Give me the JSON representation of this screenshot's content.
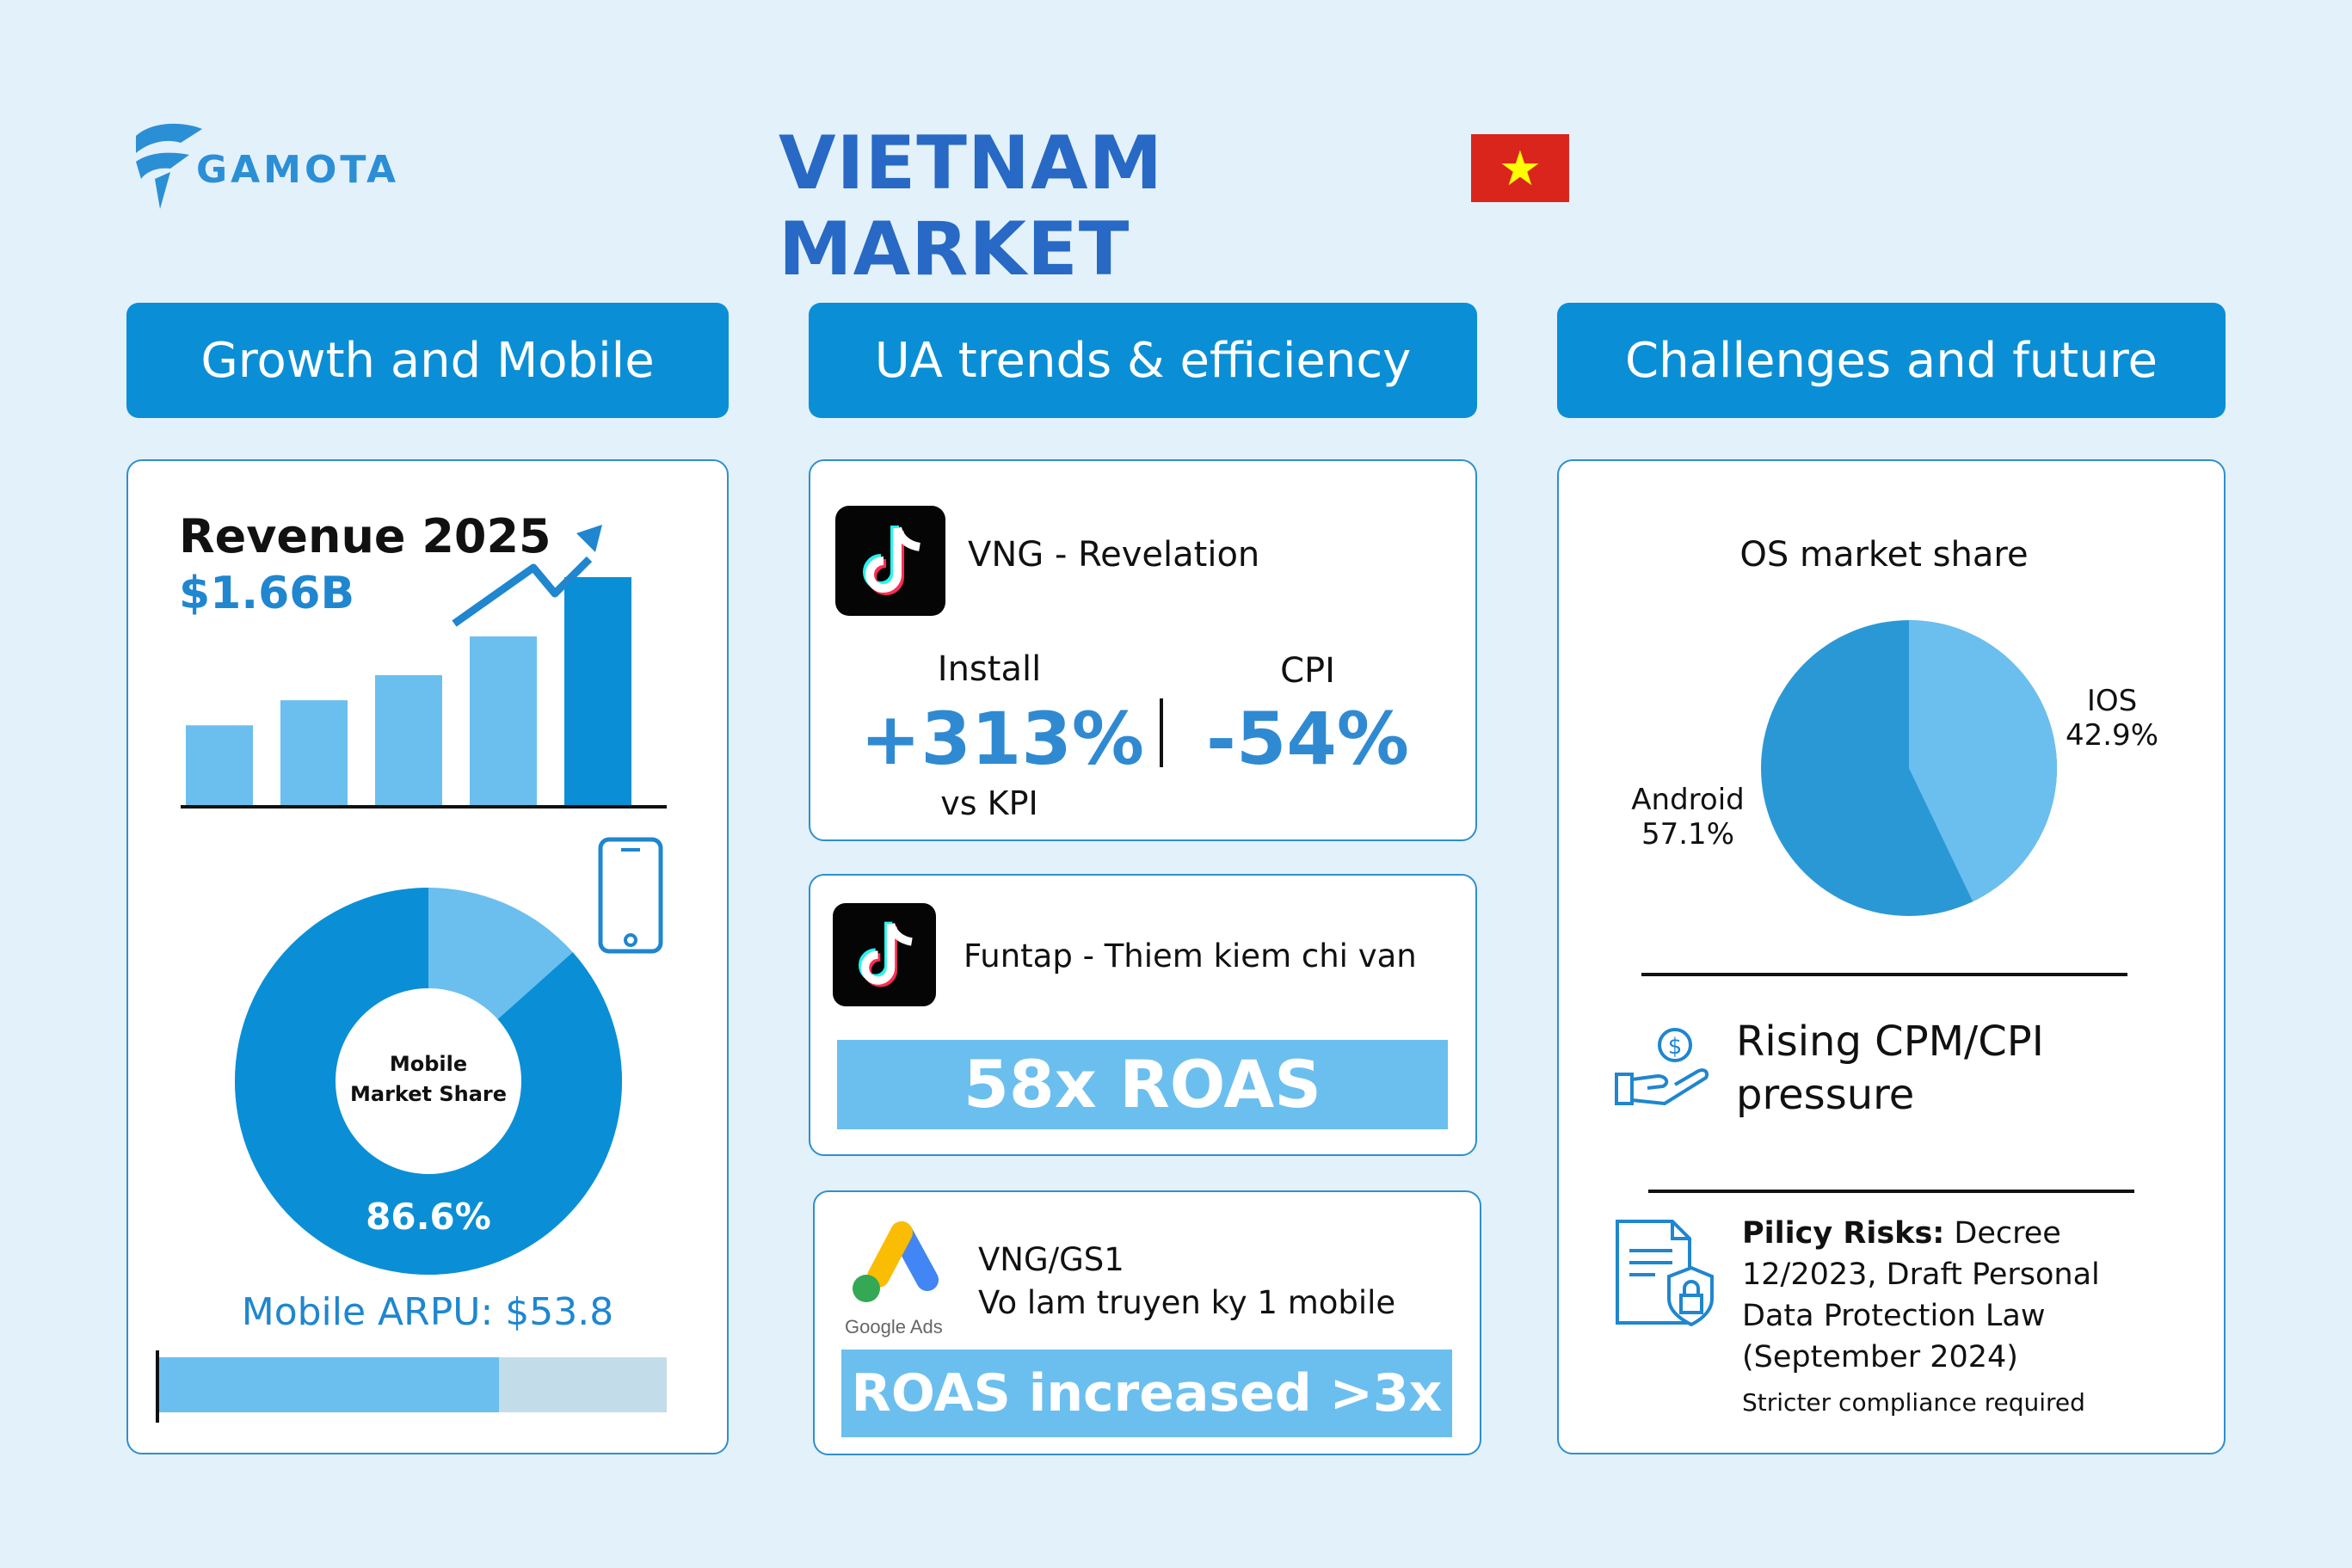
{
  "logo": {
    "prefix": "G",
    "text": "GAMOTA",
    "rest": "AMOTA"
  },
  "title": "VIETNAM MARKET",
  "flag": {
    "icon": "vietnam-flag",
    "star": "★"
  },
  "columns": {
    "growth": "Growth and Mobile",
    "ua": "UA trends & efficiency",
    "challenges": "Challenges and future"
  },
  "growth": {
    "revenue_title": "Revenue 2025",
    "revenue_value": "$1.66B",
    "bar_levels": [
      0.35,
      0.46,
      0.57,
      0.74,
      1.0
    ],
    "mobile_share_label_1": "Mobile",
    "mobile_share_label_2": "Market Share",
    "mobile_share_value": "86.6%",
    "mobile_share_fraction": 0.866,
    "arpu_label": "Mobile ARPU: $53.8",
    "arpu_fill_fraction": 0.67
  },
  "ua": {
    "case1": {
      "icon": "tiktok-icon",
      "name": "VNG - Revelation",
      "install_label": "Install",
      "install_value": "+313%",
      "install_sub": "vs KPI",
      "cpi_label": "CPI",
      "cpi_value": "-54%"
    },
    "case2": {
      "icon": "tiktok-icon",
      "name": "Funtap - Thiem kiem chi van",
      "result": "58x ROAS"
    },
    "case3": {
      "icon": "google-ads-icon",
      "brand": "Google Ads",
      "line1": "VNG/GS1",
      "line2": "Vo lam truyen ky 1 mobile",
      "result": "ROAS increased >3x"
    }
  },
  "challenges": {
    "os_title": "OS market share",
    "ios_label": "IOS",
    "ios_value": "42.9%",
    "ios_fraction": 0.429,
    "android_label": "Android",
    "android_value": "57.1%",
    "cpm_text_1": "Rising CPM/CPI",
    "cpm_text_2": "pressure",
    "policy_bold": "Pilicy Risks:",
    "policy_line1": " Decree",
    "policy_line2": "12/2023, Draft Personal",
    "policy_line3": "Data Protection Law",
    "policy_line4": "(September 2024)",
    "policy_note": "Stricter compliance required"
  },
  "colors": {
    "primary": "#0a8fd6",
    "light": "#6bbfee",
    "title": "#2769c4",
    "pale": "#c3dcea"
  }
}
